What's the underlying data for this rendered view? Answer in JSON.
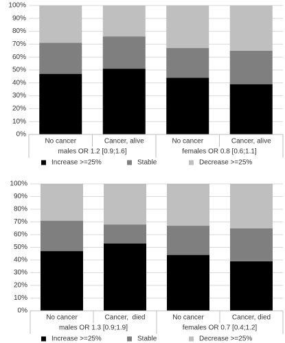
{
  "chart_data": [
    {
      "type": "bar",
      "stacked": true,
      "grid": true,
      "groups": [
        {
          "label": "males OR 1.2 [0.9;1.6]",
          "categories": [
            "No cancer",
            "Cancer, alive"
          ]
        },
        {
          "label": "females OR 0.8 [0.6;1.1]",
          "categories": [
            "No cancer",
            "Cancer, alive"
          ]
        }
      ],
      "series": [
        {
          "name": "Increase >=25%",
          "color": "#000000",
          "values": [
            47,
            51,
            44,
            39
          ]
        },
        {
          "name": "Stable",
          "color": "#7f7f7f",
          "values": [
            24,
            25,
            23,
            26
          ]
        },
        {
          "name": "Decrease >=25%",
          "color": "#bfbfbf",
          "values": [
            29,
            24,
            33,
            35
          ]
        }
      ],
      "ylim": [
        0,
        100
      ],
      "yticks": [
        {
          "value": 0,
          "label": "0%"
        },
        {
          "value": 10,
          "label": "10%"
        },
        {
          "value": 20,
          "label": "20%"
        },
        {
          "value": 30,
          "label": "30%"
        },
        {
          "value": 40,
          "label": "40%"
        },
        {
          "value": 50,
          "label": "50%"
        },
        {
          "value": 60,
          "label": "60%"
        },
        {
          "value": 70,
          "label": "70%"
        },
        {
          "value": 80,
          "label": "80%"
        },
        {
          "value": 90,
          "label": "90%"
        },
        {
          "value": 100,
          "label": "100%"
        }
      ]
    },
    {
      "type": "bar",
      "stacked": true,
      "grid": true,
      "groups": [
        {
          "label": "males OR 1.3 [0.9;1.9]",
          "categories": [
            "No cancer",
            "Cancer,  died"
          ]
        },
        {
          "label": "females OR 0.7 [0.4;1.2]",
          "categories": [
            "No cancer",
            "Cancer, died"
          ]
        }
      ],
      "series": [
        {
          "name": "Increase >=25%",
          "color": "#000000",
          "values": [
            47,
            53,
            44,
            39
          ]
        },
        {
          "name": "Stable",
          "color": "#7f7f7f",
          "values": [
            24,
            15,
            23,
            26
          ]
        },
        {
          "name": "Decrease >=25%",
          "color": "#bfbfbf",
          "values": [
            29,
            32,
            33,
            35
          ]
        }
      ],
      "ylim": [
        0,
        100
      ],
      "yticks": [
        {
          "value": 0,
          "label": "0%"
        },
        {
          "value": 10,
          "label": "10%"
        },
        {
          "value": 20,
          "label": "20%"
        },
        {
          "value": 30,
          "label": "30%"
        },
        {
          "value": 40,
          "label": "40%"
        },
        {
          "value": 50,
          "label": "50%"
        },
        {
          "value": 60,
          "label": "60%"
        },
        {
          "value": 70,
          "label": "70%"
        },
        {
          "value": 80,
          "label": "80%"
        },
        {
          "value": 90,
          "label": "90%"
        },
        {
          "value": 100,
          "label": "100%"
        }
      ]
    }
  ]
}
